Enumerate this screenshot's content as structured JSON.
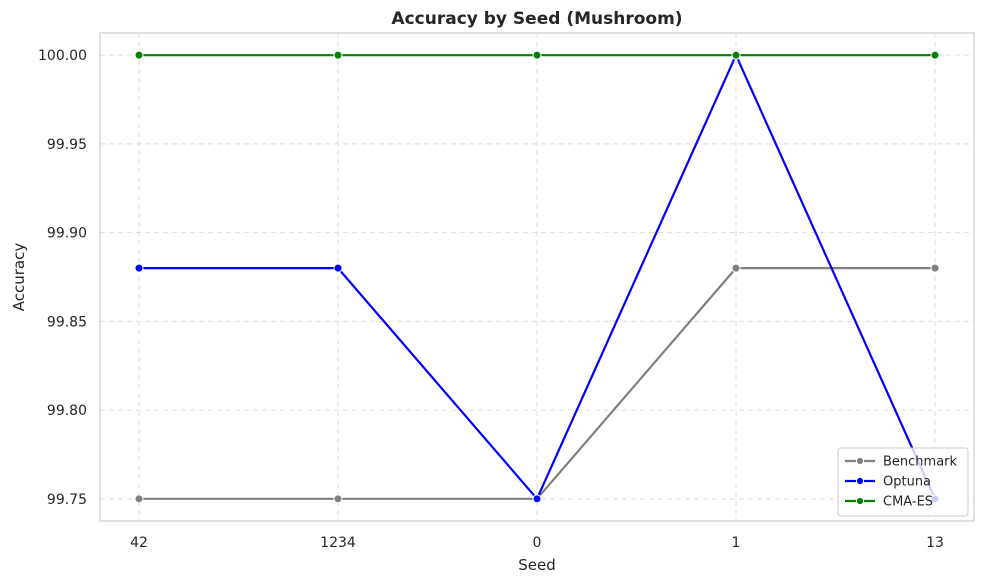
{
  "chart_data": {
    "type": "line",
    "title": "Accuracy by Seed (Mushroom)",
    "xlabel": "Seed",
    "ylabel": "Accuracy",
    "categories": [
      "42",
      "1234",
      "0",
      "1",
      "13"
    ],
    "ylim": [
      99.7375,
      100.0125
    ],
    "yticks": [
      "99.75",
      "99.80",
      "99.85",
      "99.90",
      "99.95",
      "100.00"
    ],
    "ytick_values": [
      99.75,
      99.8,
      99.85,
      99.9,
      99.95,
      100.0
    ],
    "grid": true,
    "legend_position": "bottom-right",
    "series": [
      {
        "name": "Benchmark",
        "color": "#808080",
        "values": [
          99.75,
          99.75,
          99.75,
          99.88,
          99.88
        ]
      },
      {
        "name": "Optuna",
        "color": "#0000ff",
        "values": [
          99.88,
          99.88,
          99.75,
          100.0,
          99.75
        ]
      },
      {
        "name": "CMA-ES",
        "color": "#008000",
        "values": [
          100.0,
          100.0,
          100.0,
          100.0,
          100.0
        ]
      }
    ]
  }
}
